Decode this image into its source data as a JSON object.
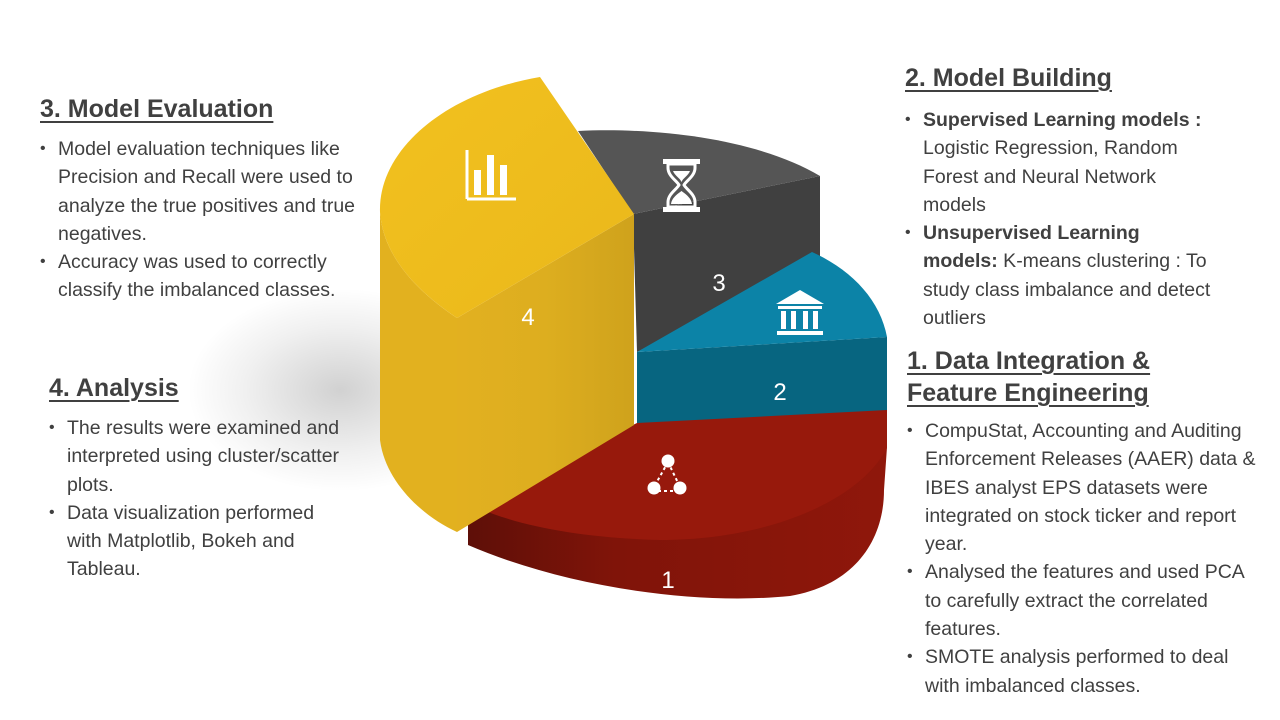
{
  "slices": [
    {
      "number": "1",
      "icon": "network-nodes-icon",
      "color": "#97190c"
    },
    {
      "number": "2",
      "icon": "institution-icon",
      "color": "#0e83a8"
    },
    {
      "number": "3",
      "icon": "hourglass-icon",
      "color": "#4a4a4a"
    },
    {
      "number": "4",
      "icon": "bar-chart-icon",
      "color": "#efbc1c"
    }
  ],
  "sections": {
    "evaluation": {
      "title": "3. Model Evaluation",
      "bullets": [
        "Model evaluation techniques like Precision and Recall were used to analyze the true positives and true negatives.",
        "Accuracy was used to correctly classify the imbalanced classes."
      ]
    },
    "analysis": {
      "title": "4. Analysis",
      "bullets": [
        "The results were examined and interpreted using cluster/scatter plots.",
        "Data visualization performed with Matplotlib, Bokeh and Tableau."
      ]
    },
    "building": {
      "title": "2. Model Building",
      "bullets": [
        {
          "bold": "Supervised Learning models :",
          "text": " Logistic Regression, Random Forest and Neural Network models"
        },
        {
          "bold": "Unsupervised Learning models:",
          "text": " K-means clustering : To study class imbalance and detect outliers"
        }
      ]
    },
    "integration": {
      "title_line1": "1. Data Integration &",
      "title_line2": "Feature Engineering",
      "bullets": [
        "CompuStat, Accounting and Auditing Enforcement Releases (AAER) data & IBES analyst EPS datasets were integrated on stock ticker and report year.",
        "Analysed the features and used PCA to carefully extract the correlated features.",
        "SMOTE analysis performed to deal with imbalanced classes."
      ]
    }
  }
}
